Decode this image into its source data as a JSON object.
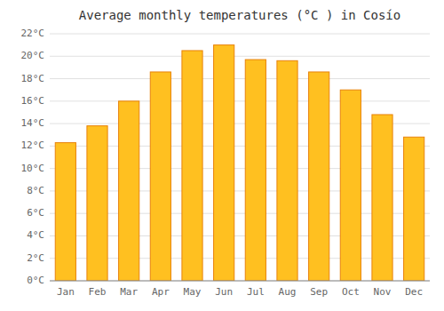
{
  "chart_data": {
    "type": "bar",
    "title": "Average monthly temperatures (°C ) in Cosío",
    "categories": [
      "Jan",
      "Feb",
      "Mar",
      "Apr",
      "May",
      "Jun",
      "Jul",
      "Aug",
      "Sep",
      "Oct",
      "Nov",
      "Dec"
    ],
    "values": [
      12.3,
      13.8,
      16.0,
      18.6,
      20.5,
      21.0,
      19.7,
      19.6,
      18.6,
      17.0,
      14.8,
      12.8
    ],
    "color": "#FFC020",
    "ylim": [
      0,
      22
    ],
    "yticks": [
      {
        "value": 0,
        "label": "0°C"
      },
      {
        "value": 2,
        "label": "2°C"
      },
      {
        "value": 4,
        "label": "4°C"
      },
      {
        "value": 6,
        "label": "6°C"
      },
      {
        "value": 8,
        "label": "8°C"
      },
      {
        "value": 10,
        "label": "10°C"
      },
      {
        "value": 12,
        "label": "12°C"
      },
      {
        "value": 14,
        "label": "14°C"
      },
      {
        "value": 16,
        "label": "16°C"
      },
      {
        "value": 18,
        "label": "18°C"
      },
      {
        "value": 20,
        "label": "20°C"
      },
      {
        "value": 22,
        "label": "22°C"
      }
    ],
    "grid": true
  }
}
